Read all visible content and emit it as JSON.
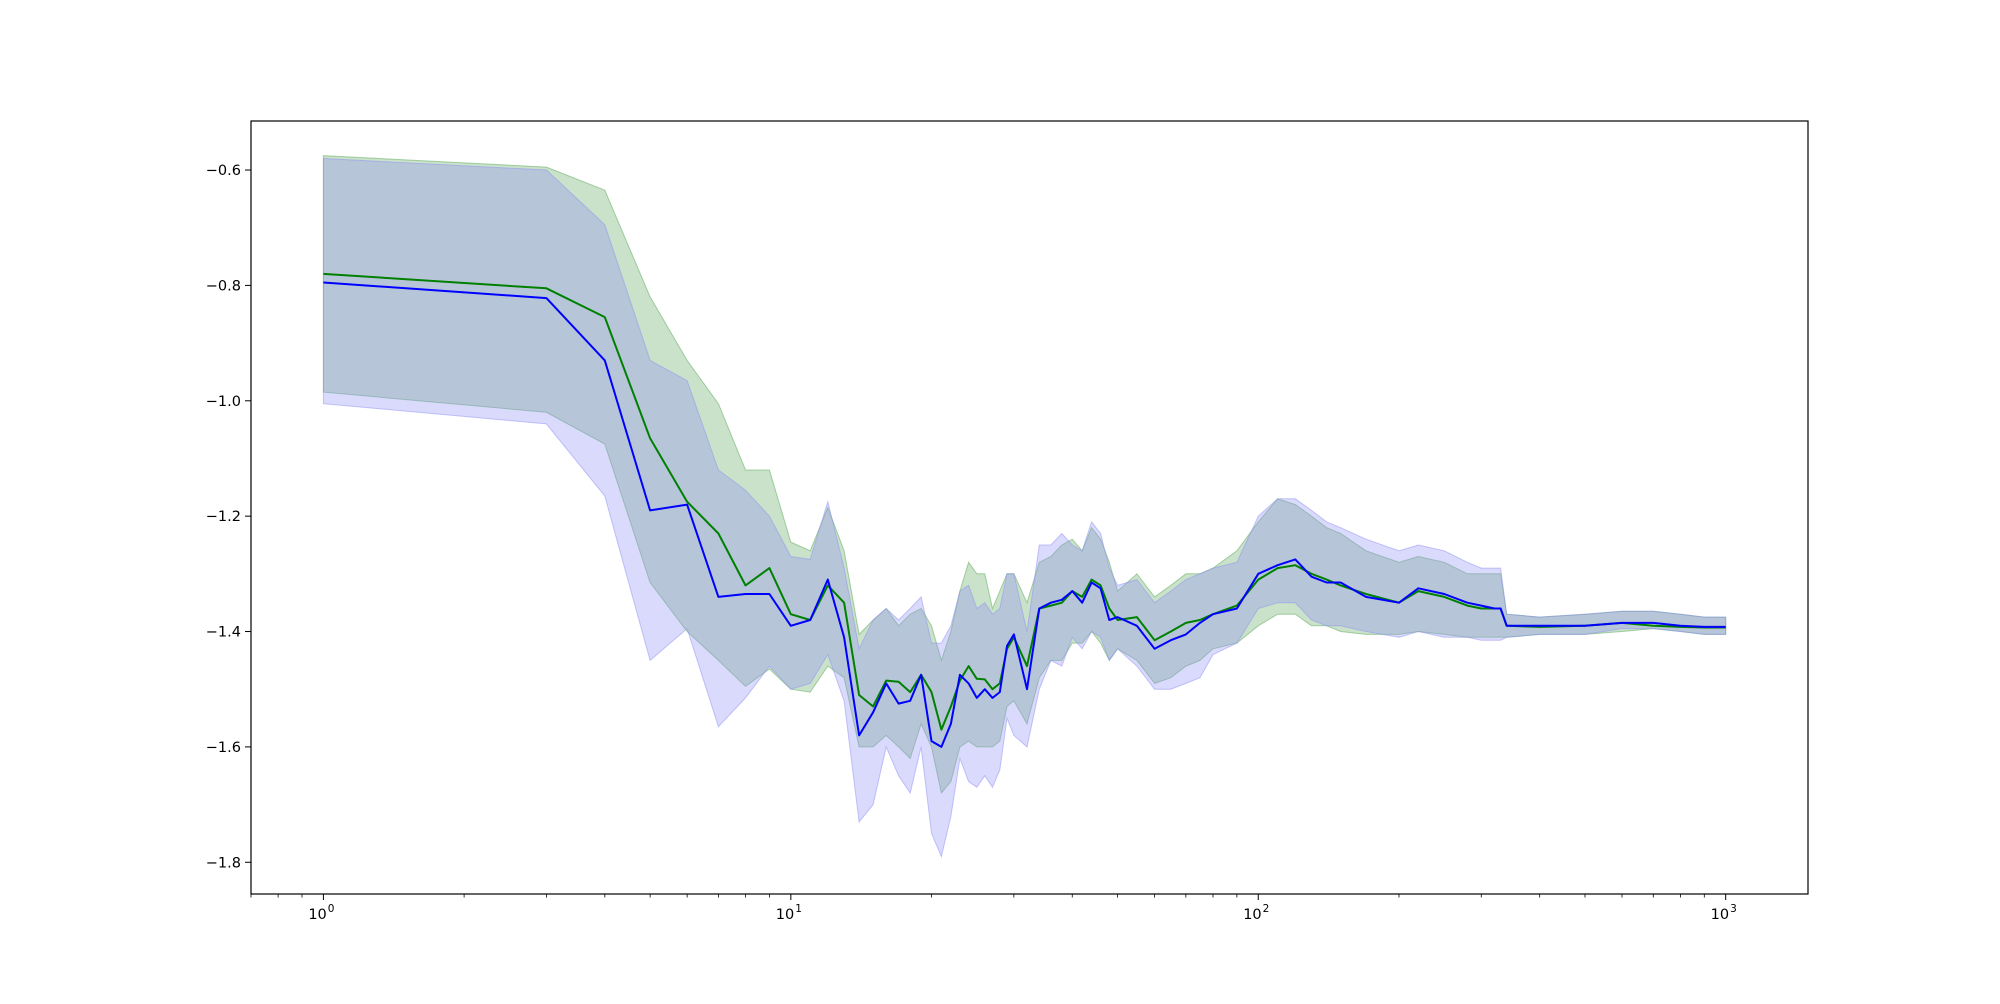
{
  "chart_data": {
    "type": "line",
    "title": "",
    "xlabel": "",
    "ylabel": "",
    "xscale": "log",
    "xlim": [
      0.7,
      1500
    ],
    "ylim": [
      -1.855,
      -0.515
    ],
    "grid": false,
    "legend": "none",
    "x_ticks": [
      {
        "base": "10",
        "exp": "0",
        "value": 1
      },
      {
        "base": "10",
        "exp": "1",
        "value": 10
      },
      {
        "base": "10",
        "exp": "2",
        "value": 100
      },
      {
        "base": "10",
        "exp": "3",
        "value": 1000
      }
    ],
    "y_ticks": [
      {
        "label": "−1.8",
        "value": -1.8
      },
      {
        "label": "−1.6",
        "value": -1.6
      },
      {
        "label": "−1.4",
        "value": -1.4
      },
      {
        "label": "−1.2",
        "value": -1.2
      },
      {
        "label": "−1.0",
        "value": -1.0
      },
      {
        "label": "−0.8",
        "value": -0.8
      },
      {
        "label": "−0.6",
        "value": -0.6
      }
    ],
    "series": [
      {
        "color": "#008000",
        "band_color": "#5aa85a",
        "x": [
          1,
          3,
          4,
          5,
          6,
          7,
          8,
          9,
          10,
          11,
          12,
          13,
          14,
          15,
          16,
          17,
          18,
          19,
          20,
          21,
          22,
          23,
          24,
          25,
          26,
          27,
          28,
          29,
          30,
          32,
          34,
          36,
          38,
          40,
          42,
          44,
          46,
          48,
          50,
          55,
          60,
          65,
          70,
          75,
          80,
          90,
          100,
          110,
          120,
          130,
          140,
          150,
          170,
          200,
          220,
          250,
          280,
          300,
          320,
          330,
          340,
          400,
          500,
          600,
          700,
          800,
          900,
          1000
        ],
        "y": [
          -0.78,
          -0.805,
          -0.855,
          -1.065,
          -1.175,
          -1.23,
          -1.32,
          -1.29,
          -1.37,
          -1.38,
          -1.32,
          -1.35,
          -1.51,
          -1.53,
          -1.485,
          -1.487,
          -1.505,
          -1.475,
          -1.505,
          -1.57,
          -1.53,
          -1.485,
          -1.46,
          -1.482,
          -1.483,
          -1.5,
          -1.49,
          -1.43,
          -1.41,
          -1.46,
          -1.36,
          -1.355,
          -1.35,
          -1.33,
          -1.34,
          -1.31,
          -1.32,
          -1.36,
          -1.38,
          -1.375,
          -1.415,
          -1.4,
          -1.385,
          -1.38,
          -1.37,
          -1.355,
          -1.31,
          -1.29,
          -1.285,
          -1.3,
          -1.31,
          -1.32,
          -1.335,
          -1.35,
          -1.33,
          -1.34,
          -1.355,
          -1.36,
          -1.36,
          -1.36,
          -1.39,
          -1.392,
          -1.39,
          -1.385,
          -1.39,
          -1.392,
          -1.393,
          -1.393
        ],
        "lower": [
          -0.985,
          -1.02,
          -1.075,
          -1.315,
          -1.4,
          -1.45,
          -1.495,
          -1.465,
          -1.5,
          -1.505,
          -1.46,
          -1.48,
          -1.6,
          -1.6,
          -1.58,
          -1.6,
          -1.62,
          -1.56,
          -1.6,
          -1.68,
          -1.66,
          -1.6,
          -1.59,
          -1.6,
          -1.6,
          -1.6,
          -1.59,
          -1.53,
          -1.52,
          -1.56,
          -1.48,
          -1.45,
          -1.45,
          -1.42,
          -1.42,
          -1.4,
          -1.42,
          -1.45,
          -1.43,
          -1.45,
          -1.49,
          -1.48,
          -1.46,
          -1.45,
          -1.43,
          -1.42,
          -1.39,
          -1.37,
          -1.37,
          -1.39,
          -1.39,
          -1.4,
          -1.405,
          -1.405,
          -1.4,
          -1.405,
          -1.41,
          -1.41,
          -1.41,
          -1.41,
          -1.41,
          -1.405,
          -1.405,
          -1.4,
          -1.395,
          -1.4,
          -1.405,
          -1.405
        ],
        "upper": [
          -0.575,
          -0.595,
          -0.635,
          -0.82,
          -0.93,
          -1.005,
          -1.12,
          -1.12,
          -1.245,
          -1.26,
          -1.185,
          -1.26,
          -1.405,
          -1.38,
          -1.36,
          -1.39,
          -1.37,
          -1.36,
          -1.39,
          -1.45,
          -1.4,
          -1.33,
          -1.28,
          -1.3,
          -1.3,
          -1.36,
          -1.33,
          -1.3,
          -1.3,
          -1.35,
          -1.28,
          -1.27,
          -1.25,
          -1.24,
          -1.26,
          -1.22,
          -1.24,
          -1.28,
          -1.33,
          -1.3,
          -1.34,
          -1.32,
          -1.3,
          -1.3,
          -1.29,
          -1.26,
          -1.21,
          -1.17,
          -1.18,
          -1.2,
          -1.22,
          -1.23,
          -1.26,
          -1.28,
          -1.27,
          -1.28,
          -1.3,
          -1.3,
          -1.3,
          -1.3,
          -1.37,
          -1.375,
          -1.37,
          -1.365,
          -1.365,
          -1.37,
          -1.375,
          -1.375
        ]
      },
      {
        "color": "#0000ff",
        "band_color": "#8f8ff5",
        "x": [
          1,
          3,
          4,
          5,
          6,
          7,
          8,
          9,
          10,
          11,
          12,
          13,
          14,
          15,
          16,
          17,
          18,
          19,
          20,
          21,
          22,
          23,
          24,
          25,
          26,
          27,
          28,
          29,
          30,
          32,
          34,
          36,
          38,
          40,
          42,
          44,
          46,
          48,
          50,
          55,
          60,
          65,
          70,
          75,
          80,
          90,
          100,
          110,
          120,
          130,
          140,
          150,
          170,
          200,
          220,
          250,
          280,
          300,
          320,
          330,
          340,
          400,
          500,
          600,
          700,
          800,
          900,
          1000
        ],
        "y": [
          -0.795,
          -0.822,
          -0.93,
          -1.19,
          -1.18,
          -1.34,
          -1.335,
          -1.335,
          -1.39,
          -1.38,
          -1.31,
          -1.41,
          -1.58,
          -1.54,
          -1.49,
          -1.525,
          -1.52,
          -1.475,
          -1.59,
          -1.6,
          -1.56,
          -1.475,
          -1.49,
          -1.515,
          -1.5,
          -1.515,
          -1.505,
          -1.425,
          -1.405,
          -1.5,
          -1.36,
          -1.35,
          -1.345,
          -1.33,
          -1.35,
          -1.315,
          -1.325,
          -1.38,
          -1.375,
          -1.39,
          -1.43,
          -1.415,
          -1.405,
          -1.385,
          -1.37,
          -1.36,
          -1.3,
          -1.285,
          -1.275,
          -1.305,
          -1.315,
          -1.315,
          -1.34,
          -1.35,
          -1.325,
          -1.335,
          -1.35,
          -1.355,
          -1.36,
          -1.36,
          -1.39,
          -1.39,
          -1.39,
          -1.385,
          -1.385,
          -1.39,
          -1.392,
          -1.392
        ],
        "lower": [
          -1.005,
          -1.04,
          -1.165,
          -1.45,
          -1.395,
          -1.565,
          -1.515,
          -1.46,
          -1.5,
          -1.49,
          -1.44,
          -1.52,
          -1.73,
          -1.7,
          -1.6,
          -1.65,
          -1.68,
          -1.6,
          -1.75,
          -1.79,
          -1.72,
          -1.62,
          -1.66,
          -1.67,
          -1.65,
          -1.67,
          -1.64,
          -1.55,
          -1.58,
          -1.6,
          -1.5,
          -1.45,
          -1.46,
          -1.41,
          -1.43,
          -1.4,
          -1.41,
          -1.45,
          -1.43,
          -1.46,
          -1.5,
          -1.5,
          -1.49,
          -1.48,
          -1.44,
          -1.42,
          -1.36,
          -1.35,
          -1.35,
          -1.38,
          -1.39,
          -1.39,
          -1.4,
          -1.41,
          -1.4,
          -1.41,
          -1.41,
          -1.415,
          -1.415,
          -1.415,
          -1.41,
          -1.405,
          -1.405,
          -1.395,
          -1.395,
          -1.4,
          -1.405,
          -1.405
        ],
        "upper": [
          -0.58,
          -0.6,
          -0.695,
          -0.93,
          -0.965,
          -1.12,
          -1.155,
          -1.2,
          -1.27,
          -1.275,
          -1.175,
          -1.29,
          -1.43,
          -1.38,
          -1.36,
          -1.38,
          -1.36,
          -1.34,
          -1.42,
          -1.42,
          -1.39,
          -1.33,
          -1.32,
          -1.36,
          -1.35,
          -1.37,
          -1.36,
          -1.3,
          -1.3,
          -1.4,
          -1.25,
          -1.25,
          -1.23,
          -1.25,
          -1.26,
          -1.21,
          -1.23,
          -1.29,
          -1.32,
          -1.31,
          -1.35,
          -1.33,
          -1.31,
          -1.3,
          -1.29,
          -1.28,
          -1.2,
          -1.17,
          -1.17,
          -1.19,
          -1.21,
          -1.22,
          -1.24,
          -1.26,
          -1.25,
          -1.26,
          -1.28,
          -1.29,
          -1.29,
          -1.29,
          -1.37,
          -1.375,
          -1.37,
          -1.365,
          -1.365,
          -1.37,
          -1.375,
          -1.375
        ]
      }
    ]
  }
}
